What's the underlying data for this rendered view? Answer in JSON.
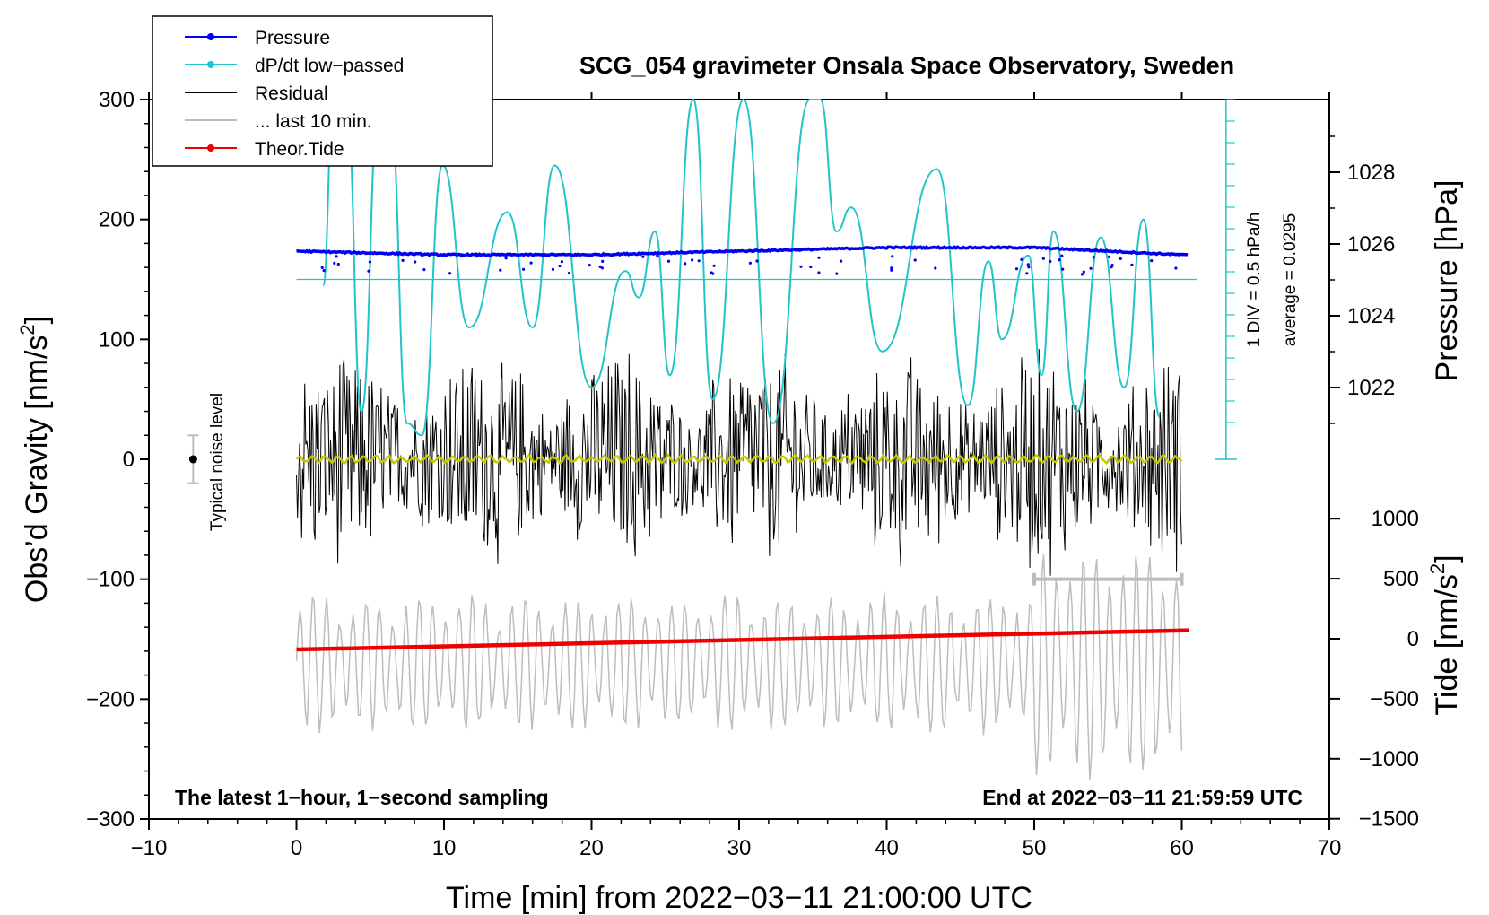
{
  "chart_data": {
    "type": "line",
    "title": "SCG_054 gravimeter Onsala Space Observatory, Sweden",
    "xlabel": "Time [min] from 2022−03−11 21:00:00 UTC",
    "ylabel_left": "Obs’d Gravity [nm/s",
    "ylabel_left_sup": "2",
    "ylabel_left_end": "]",
    "ylabel_right_top": "Pressure [hPa]",
    "ylabel_right_bottom": "Tide [nm/s",
    "ylabel_right_bottom_sup": "2",
    "ylabel_right_bottom_end": "]",
    "xlim": [
      -10,
      70
    ],
    "ylim_left": [
      -300,
      300
    ],
    "x_ticks": [
      "−10",
      "0",
      "10",
      "20",
      "30",
      "40",
      "50",
      "60",
      "70"
    ],
    "y_ticks_left": [
      "300",
      "200",
      "100",
      "0",
      "−100",
      "−200",
      "−300"
    ],
    "pressure_ticks": [
      "1028",
      "1026",
      "1024",
      "1022"
    ],
    "tide_ticks": [
      "1000",
      "500",
      "0",
      "−500",
      "−1000",
      "−1500"
    ],
    "footer_left": "The latest 1−hour, 1−second sampling",
    "footer_right": "End at 2022−03−11 21:59:59 UTC",
    "scale_note_div": "1 DIV = 0.5 hPa/h",
    "scale_note_avg": "average = 0.0295",
    "noise_label": "Typical noise level",
    "legend": [
      {
        "label": "Pressure",
        "color": "#0000ee",
        "marker": true
      },
      {
        "label": "dP/dt low−passed",
        "color": "#22c4c8",
        "marker": true
      },
      {
        "label": "Residual",
        "color": "#000000",
        "marker": false
      },
      {
        "label": "... last 10 min.",
        "color": "#bdbdbd",
        "marker": false
      },
      {
        "label": "Theor.Tide",
        "color": "#ee0000",
        "marker": true
      }
    ],
    "series": [
      {
        "name": "Pressure",
        "unit": "hPa",
        "x": [
          0,
          10,
          20,
          30,
          40,
          50,
          60
        ],
        "values": [
          1025.8,
          1025.7,
          1025.7,
          1025.8,
          1025.9,
          1025.9,
          1025.7
        ]
      },
      {
        "name": "dP/dt low-passed",
        "unit": "nm/s2 plot units",
        "x": [
          1.8,
          2.5,
          3.4,
          4.4,
          5.6,
          6.4,
          7.5,
          8.5,
          9.9,
          11.7,
          14.3,
          16.0,
          17.5,
          20.0,
          22.3,
          23.2,
          24.3,
          25.3,
          26.9,
          28.2,
          30.3,
          32.3,
          34.8,
          35.5,
          36.6,
          37.6,
          39.7,
          43.4,
          45.5,
          46.9,
          47.8,
          49.6,
          50.5,
          51.3,
          52.9,
          54.5,
          56.1,
          57.4,
          58.5
        ],
        "values": [
          145,
          300,
          300,
          40,
          300,
          280,
          30,
          20,
          245,
          110,
          206,
          110,
          245,
          60,
          157,
          135,
          190,
          70,
          300,
          50,
          300,
          30,
          300,
          300,
          190,
          210,
          90,
          242,
          45,
          165,
          100,
          170,
          70,
          190,
          40,
          185,
          60,
          200,
          35
        ]
      },
      {
        "name": "Residual",
        "unit": "nm/s2",
        "x": [
          0,
          10,
          20,
          30,
          40,
          50,
          60
        ],
        "values": [
          0,
          0,
          0,
          0,
          0,
          0,
          0
        ],
        "envelope": 100
      },
      {
        "name": "Residual smoothed",
        "unit": "nm/s2",
        "x": [
          0,
          10,
          20,
          30,
          40,
          50,
          60
        ],
        "values": [
          0,
          0,
          0,
          0,
          0,
          0,
          0
        ],
        "color": "#c8c800"
      },
      {
        "name": "... last 10 min.",
        "unit": "nm/s2 (display offset)",
        "x": [
          0,
          60
        ],
        "values": [
          -170,
          -170
        ]
      },
      {
        "name": "Theor.Tide",
        "unit": "nm/s2",
        "x": [
          0,
          60.5
        ],
        "values": [
          -90,
          70
        ]
      }
    ],
    "last10_bracket": [
      50,
      60
    ],
    "noise_bar": {
      "x": -7,
      "center": 0,
      "half_range": 20
    }
  }
}
